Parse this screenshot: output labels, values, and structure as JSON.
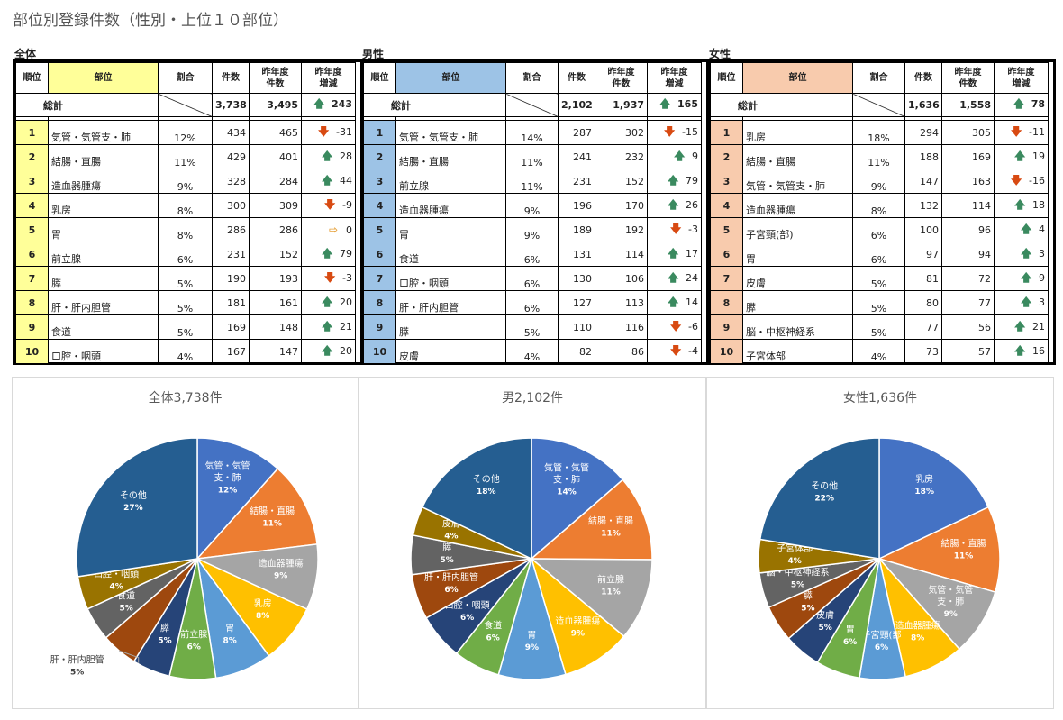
{
  "page_title": "部位別登録件数（性別・上位１０部位）",
  "headers": {
    "rank": "順位",
    "site": "部位",
    "pct": "割合",
    "count": "件数",
    "prev1": "昨年度",
    "prev2": "件数",
    "chg1": "昨年度",
    "chg2": "増減"
  },
  "arrow_glyphs": {
    "up": "🡅",
    "down": "🡇",
    "flat": "⇨"
  },
  "colors": {
    "all_header": "#ffff99",
    "male_header": "#9dc3e6",
    "female_header": "#f8cbad"
  },
  "tables": [
    {
      "label": "全体",
      "total_label": "総計",
      "total_count": "3,738",
      "total_prev": "3,495",
      "total_arrow": "up",
      "total_change": "243",
      "rows": [
        {
          "rank": "1",
          "site": "気管・気管支・肺",
          "pct": "12%",
          "count": "434",
          "prev": "465",
          "arrow": "down",
          "change": "-31"
        },
        {
          "rank": "2",
          "site": "結腸・直腸",
          "pct": "11%",
          "count": "429",
          "prev": "401",
          "arrow": "up",
          "change": "28"
        },
        {
          "rank": "3",
          "site": "造血器腫瘍",
          "pct": "9%",
          "count": "328",
          "prev": "284",
          "arrow": "up",
          "change": "44"
        },
        {
          "rank": "4",
          "site": "乳房",
          "pct": "8%",
          "count": "300",
          "prev": "309",
          "arrow": "down",
          "change": "-9"
        },
        {
          "rank": "5",
          "site": "胃",
          "pct": "8%",
          "count": "286",
          "prev": "286",
          "arrow": "flat",
          "change": "0"
        },
        {
          "rank": "6",
          "site": "前立腺",
          "pct": "6%",
          "count": "231",
          "prev": "152",
          "arrow": "up",
          "change": "79"
        },
        {
          "rank": "7",
          "site": "膵",
          "pct": "5%",
          "count": "190",
          "prev": "193",
          "arrow": "down",
          "change": "-3"
        },
        {
          "rank": "8",
          "site": "肝・肝内胆管",
          "pct": "5%",
          "count": "181",
          "prev": "161",
          "arrow": "up",
          "change": "20"
        },
        {
          "rank": "9",
          "site": "食道",
          "pct": "5%",
          "count": "169",
          "prev": "148",
          "arrow": "up",
          "change": "21"
        },
        {
          "rank": "10",
          "site": "口腔・咽頭",
          "pct": "4%",
          "count": "167",
          "prev": "147",
          "arrow": "up",
          "change": "20"
        }
      ]
    },
    {
      "label": "男性",
      "total_label": "総計",
      "total_count": "2,102",
      "total_prev": "1,937",
      "total_arrow": "up",
      "total_change": "165",
      "rows": [
        {
          "rank": "1",
          "site": "気管・気管支・肺",
          "pct": "14%",
          "count": "287",
          "prev": "302",
          "arrow": "down",
          "change": "-15"
        },
        {
          "rank": "2",
          "site": "結腸・直腸",
          "pct": "11%",
          "count": "241",
          "prev": "232",
          "arrow": "up",
          "change": "9"
        },
        {
          "rank": "3",
          "site": "前立腺",
          "pct": "11%",
          "count": "231",
          "prev": "152",
          "arrow": "up",
          "change": "79"
        },
        {
          "rank": "4",
          "site": "造血器腫瘍",
          "pct": "9%",
          "count": "196",
          "prev": "170",
          "arrow": "up",
          "change": "26"
        },
        {
          "rank": "5",
          "site": "胃",
          "pct": "9%",
          "count": "189",
          "prev": "192",
          "arrow": "down",
          "change": "-3"
        },
        {
          "rank": "6",
          "site": "食道",
          "pct": "6%",
          "count": "131",
          "prev": "114",
          "arrow": "up",
          "change": "17"
        },
        {
          "rank": "7",
          "site": "口腔・咽頭",
          "pct": "6%",
          "count": "130",
          "prev": "106",
          "arrow": "up",
          "change": "24"
        },
        {
          "rank": "8",
          "site": "肝・肝内胆管",
          "pct": "6%",
          "count": "127",
          "prev": "113",
          "arrow": "up",
          "change": "14"
        },
        {
          "rank": "9",
          "site": "膵",
          "pct": "5%",
          "count": "110",
          "prev": "116",
          "arrow": "down",
          "change": "-6"
        },
        {
          "rank": "10",
          "site": "皮膚",
          "pct": "4%",
          "count": "82",
          "prev": "86",
          "arrow": "down",
          "change": "-4"
        }
      ]
    },
    {
      "label": "女性",
      "total_label": "総計",
      "total_count": "1,636",
      "total_prev": "1,558",
      "total_arrow": "up",
      "total_change": "78",
      "rows": [
        {
          "rank": "1",
          "site": "乳房",
          "pct": "18%",
          "count": "294",
          "prev": "305",
          "arrow": "down",
          "change": "-11"
        },
        {
          "rank": "2",
          "site": "結腸・直腸",
          "pct": "11%",
          "count": "188",
          "prev": "169",
          "arrow": "up",
          "change": "19"
        },
        {
          "rank": "3",
          "site": "気管・気管支・肺",
          "pct": "9%",
          "count": "147",
          "prev": "163",
          "arrow": "down",
          "change": "-16"
        },
        {
          "rank": "4",
          "site": "造血器腫瘍",
          "pct": "8%",
          "count": "132",
          "prev": "114",
          "arrow": "up",
          "change": "18"
        },
        {
          "rank": "5",
          "site": "子宮頸(部)",
          "pct": "6%",
          "count": "100",
          "prev": "96",
          "arrow": "up",
          "change": "4"
        },
        {
          "rank": "6",
          "site": "胃",
          "pct": "6%",
          "count": "97",
          "prev": "94",
          "arrow": "up",
          "change": "3"
        },
        {
          "rank": "7",
          "site": "皮膚",
          "pct": "5%",
          "count": "81",
          "prev": "72",
          "arrow": "up",
          "change": "9"
        },
        {
          "rank": "8",
          "site": "膵",
          "pct": "5%",
          "count": "80",
          "prev": "77",
          "arrow": "up",
          "change": "3"
        },
        {
          "rank": "9",
          "site": "脳・中枢神経系",
          "pct": "5%",
          "count": "77",
          "prev": "56",
          "arrow": "up",
          "change": "21"
        },
        {
          "rank": "10",
          "site": "子宮体部",
          "pct": "4%",
          "count": "73",
          "prev": "57",
          "arrow": "up",
          "change": "16"
        }
      ]
    }
  ],
  "chart_data": [
    {
      "type": "pie",
      "title": "全体3,738件",
      "slices": [
        {
          "label": "気管・気管支・肺",
          "label_lines": [
            "気管・気管",
            "支・肺"
          ],
          "value": 434,
          "pct_label": "12%",
          "color": "#4472c4"
        },
        {
          "label": "結腸・直腸",
          "label_lines": [
            "結腸・直腸"
          ],
          "value": 429,
          "pct_label": "11%",
          "color": "#ed7d31"
        },
        {
          "label": "造血器腫瘍",
          "label_lines": [
            "造血器腫瘍"
          ],
          "value": 328,
          "pct_label": "9%",
          "color": "#a5a5a5"
        },
        {
          "label": "乳房",
          "label_lines": [
            "乳房"
          ],
          "value": 300,
          "pct_label": "8%",
          "color": "#ffc000"
        },
        {
          "label": "胃",
          "label_lines": [
            "胃"
          ],
          "value": 286,
          "pct_label": "8%",
          "color": "#5b9bd5"
        },
        {
          "label": "前立腺",
          "label_lines": [
            "前立腺"
          ],
          "value": 231,
          "pct_label": "6%",
          "color": "#70ad47"
        },
        {
          "label": "膵",
          "label_lines": [
            "膵"
          ],
          "value": 190,
          "pct_label": "5%",
          "color": "#264478"
        },
        {
          "label": "肝・肝内胆管",
          "label_lines": [
            "肝・肝内胆管"
          ],
          "value": 181,
          "pct_label": "5%",
          "color": "#9e480e",
          "outside": true
        },
        {
          "label": "食道",
          "label_lines": [
            "食道"
          ],
          "value": 169,
          "pct_label": "5%",
          "color": "#636363"
        },
        {
          "label": "口腔・咽頭",
          "label_lines": [
            "口腔・咽頭"
          ],
          "value": 167,
          "pct_label": "4%",
          "color": "#997300"
        },
        {
          "label": "その他",
          "label_lines": [
            "その他"
          ],
          "value": 1023,
          "pct_label": "27%",
          "color": "#255e91"
        }
      ]
    },
    {
      "type": "pie",
      "title": "男2,102件",
      "slices": [
        {
          "label": "気管・気管支・肺",
          "label_lines": [
            "気管・気管",
            "支・肺"
          ],
          "value": 287,
          "pct_label": "14%",
          "color": "#4472c4"
        },
        {
          "label": "結腸・直腸",
          "label_lines": [
            "結腸・直腸"
          ],
          "value": 241,
          "pct_label": "11%",
          "color": "#ed7d31"
        },
        {
          "label": "前立腺",
          "label_lines": [
            "前立腺"
          ],
          "value": 231,
          "pct_label": "11%",
          "color": "#a5a5a5"
        },
        {
          "label": "造血器腫瘍",
          "label_lines": [
            "造血器腫瘍"
          ],
          "value": 196,
          "pct_label": "9%",
          "color": "#ffc000"
        },
        {
          "label": "胃",
          "label_lines": [
            "胃"
          ],
          "value": 189,
          "pct_label": "9%",
          "color": "#5b9bd5"
        },
        {
          "label": "食道",
          "label_lines": [
            "食道"
          ],
          "value": 131,
          "pct_label": "6%",
          "color": "#70ad47"
        },
        {
          "label": "口腔・咽頭",
          "label_lines": [
            "口腔・咽頭"
          ],
          "value": 130,
          "pct_label": "6%",
          "color": "#264478"
        },
        {
          "label": "肝・肝内胆管",
          "label_lines": [
            "肝・肝内胆管"
          ],
          "value": 127,
          "pct_label": "6%",
          "color": "#9e480e"
        },
        {
          "label": "膵",
          "label_lines": [
            "膵"
          ],
          "value": 110,
          "pct_label": "5%",
          "color": "#636363"
        },
        {
          "label": "皮膚",
          "label_lines": [
            "皮膚"
          ],
          "value": 82,
          "pct_label": "4%",
          "color": "#997300"
        },
        {
          "label": "その他",
          "label_lines": [
            "その他"
          ],
          "value": 378,
          "pct_label": "18%",
          "color": "#255e91"
        }
      ]
    },
    {
      "type": "pie",
      "title": "女性1,636件",
      "slices": [
        {
          "label": "乳房",
          "label_lines": [
            "乳房"
          ],
          "value": 294,
          "pct_label": "18%",
          "color": "#4472c4"
        },
        {
          "label": "結腸・直腸",
          "label_lines": [
            "結腸・直腸"
          ],
          "value": 188,
          "pct_label": "11%",
          "color": "#ed7d31"
        },
        {
          "label": "気管・気管支・肺",
          "label_lines": [
            "気管・気管",
            "支・肺"
          ],
          "value": 147,
          "pct_label": "9%",
          "color": "#a5a5a5"
        },
        {
          "label": "造血器腫瘍",
          "label_lines": [
            "造血器腫瘍"
          ],
          "value": 132,
          "pct_label": "8%",
          "color": "#ffc000"
        },
        {
          "label": "子宮頸(部)",
          "label_lines": [
            "子宮頸(部"
          ],
          "value": 100,
          "pct_label": "6%",
          "color": "#5b9bd5"
        },
        {
          "label": "胃",
          "label_lines": [
            "胃"
          ],
          "value": 97,
          "pct_label": "6%",
          "color": "#70ad47"
        },
        {
          "label": "皮膚",
          "label_lines": [
            "皮膚"
          ],
          "value": 81,
          "pct_label": "5%",
          "color": "#264478"
        },
        {
          "label": "膵",
          "label_lines": [
            "膵"
          ],
          "value": 80,
          "pct_label": "5%",
          "color": "#9e480e"
        },
        {
          "label": "脳・中枢神経系",
          "label_lines": [
            "脳・中枢神経系"
          ],
          "value": 77,
          "pct_label": "5%",
          "color": "#636363"
        },
        {
          "label": "子宮体部",
          "label_lines": [
            "子宮体部"
          ],
          "value": 73,
          "pct_label": "4%",
          "color": "#997300"
        },
        {
          "label": "その他",
          "label_lines": [
            "その他"
          ],
          "value": 367,
          "pct_label": "22%",
          "color": "#255e91"
        }
      ]
    }
  ]
}
